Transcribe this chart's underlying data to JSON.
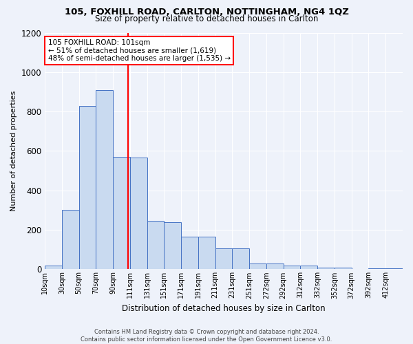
{
  "title_line1": "105, FOXHILL ROAD, CARLTON, NOTTINGHAM, NG4 1QZ",
  "title_line2": "Size of property relative to detached houses in Carlton",
  "xlabel": "Distribution of detached houses by size in Carlton",
  "ylabel": "Number of detached properties",
  "annotation_line1": "105 FOXHILL ROAD: 101sqm",
  "annotation_line2": "← 51% of detached houses are smaller (1,619)",
  "annotation_line3": "48% of semi-detached houses are larger (1,535) →",
  "footer_line1": "Contains HM Land Registry data © Crown copyright and database right 2024.",
  "footer_line2": "Contains public sector information licensed under the Open Government Licence v3.0.",
  "bin_labels": [
    "10sqm",
    "30sqm",
    "50sqm",
    "70sqm",
    "90sqm",
    "111sqm",
    "131sqm",
    "151sqm",
    "171sqm",
    "191sqm",
    "211sqm",
    "231sqm",
    "251sqm",
    "272sqm",
    "292sqm",
    "312sqm",
    "332sqm",
    "352sqm",
    "372sqm",
    "392sqm",
    "412sqm"
  ],
  "bar_centers": [
    0.5,
    1.5,
    2.5,
    3.5,
    4.5,
    5.5,
    6.5,
    7.5,
    8.5,
    9.5,
    10.5,
    11.5,
    12.5,
    13.5,
    14.5,
    15.5,
    16.5,
    17.5,
    18.5,
    19.5,
    20.5
  ],
  "bar_values": [
    20,
    300,
    830,
    910,
    570,
    565,
    245,
    240,
    165,
    165,
    105,
    105,
    30,
    30,
    20,
    20,
    10,
    10,
    0,
    5,
    5
  ],
  "bar_color": "#c9daf0",
  "bar_edge_color": "#4472c4",
  "marker_bin": 4.9,
  "marker_color": "red",
  "ylim": [
    0,
    1200
  ],
  "yticks": [
    0,
    200,
    400,
    600,
    800,
    1000,
    1200
  ],
  "background_color": "#eef2fa",
  "grid_color": "#ffffff"
}
